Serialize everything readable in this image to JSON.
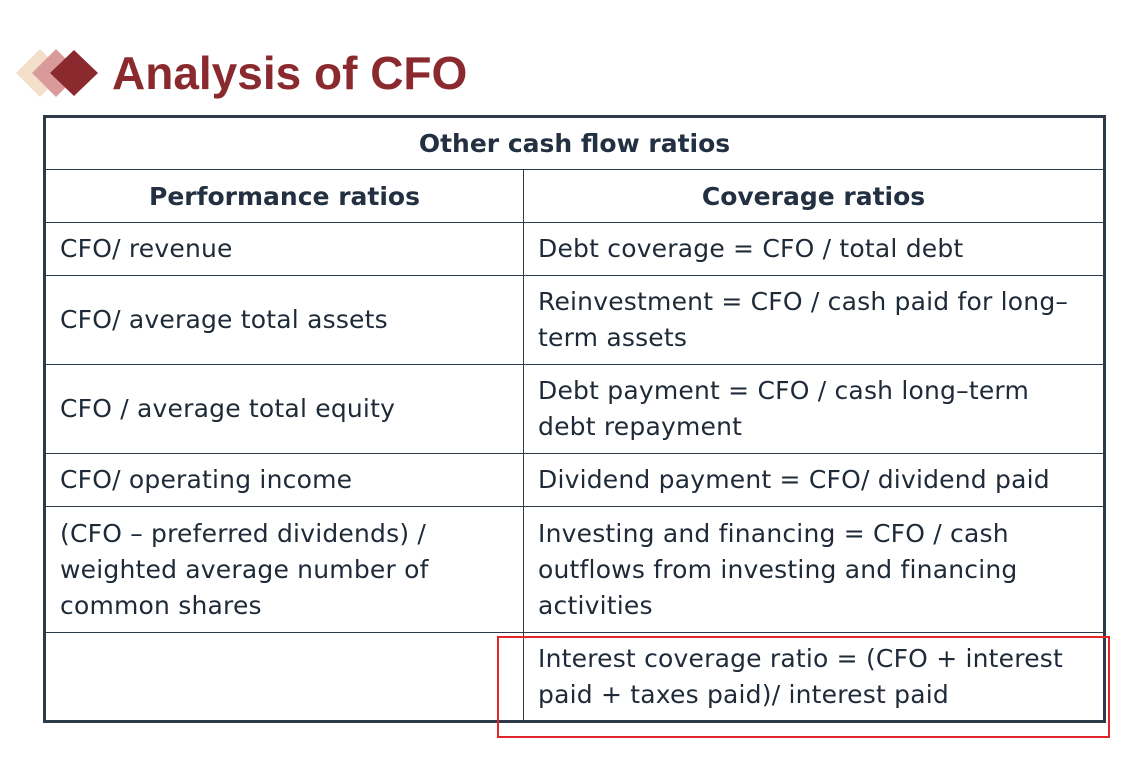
{
  "slide": {
    "title": "Analysis of CFO",
    "logo_icon": "diamond-stack-icon",
    "colors": {
      "title": "#8b2a2e",
      "table_text": "#1f2a38",
      "highlight": "#e0252b"
    }
  },
  "table": {
    "title": "Other cash flow ratios",
    "headers": {
      "left": "Performance ratios",
      "right": "Coverage ratios"
    },
    "rows": [
      {
        "left": "CFO/ revenue",
        "right": "Debt coverage = CFO / total debt"
      },
      {
        "left": "CFO/ average total assets",
        "right": "Reinvestment = CFO / cash paid for long–term assets"
      },
      {
        "left": "CFO / average total equity",
        "right": "Debt payment = CFO / cash long–term debt repayment"
      },
      {
        "left": "CFO/ operating income",
        "right": "Dividend payment = CFO/ dividend paid"
      },
      {
        "left": "(CFO – preferred dividends) / weighted average number of common shares",
        "right": "Investing and financing = CFO / cash outflows from investing and financing activities"
      },
      {
        "left": "",
        "right": "Interest coverage ratio = (CFO + interest paid + taxes paid)/ interest paid"
      }
    ]
  }
}
